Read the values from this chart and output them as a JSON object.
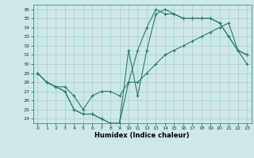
{
  "xlabel": "Humidex (Indice chaleur)",
  "bg_color": "#cce8e8",
  "line_color": "#2e7d6e",
  "grid_color": "#aacccc",
  "xlim": [
    -0.5,
    23.5
  ],
  "ylim": [
    23.5,
    36.5
  ],
  "xticks": [
    0,
    1,
    2,
    3,
    4,
    5,
    6,
    7,
    8,
    9,
    10,
    11,
    12,
    13,
    14,
    15,
    16,
    17,
    18,
    19,
    20,
    21,
    22,
    23
  ],
  "yticks": [
    24,
    25,
    26,
    27,
    28,
    29,
    30,
    31,
    32,
    33,
    34,
    35,
    36
  ],
  "line1_x": [
    0,
    1,
    2,
    3,
    4,
    5,
    6,
    7,
    8,
    9,
    10,
    11,
    12,
    13,
    14,
    15,
    16,
    17,
    18,
    19,
    20,
    21,
    22,
    23
  ],
  "line1_y": [
    29,
    28,
    27.5,
    27.5,
    26.5,
    25,
    26.5,
    27,
    27,
    26.5,
    28,
    28,
    29,
    30,
    31,
    31.5,
    32,
    32.5,
    33,
    33.5,
    34,
    34.5,
    31.5,
    30
  ],
  "line2_x": [
    0,
    1,
    2,
    3,
    4,
    5,
    6,
    7,
    8,
    9,
    10,
    11,
    12,
    13,
    14,
    15,
    16,
    17,
    18,
    19,
    20,
    21,
    22,
    23
  ],
  "line2_y": [
    29,
    28,
    27.5,
    27,
    25,
    24.5,
    24.5,
    24,
    23.5,
    23.5,
    28,
    31.5,
    34,
    36,
    35.5,
    35.5,
    35,
    35,
    35,
    35,
    34.5,
    33,
    31.5,
    31
  ],
  "line3_x": [
    0,
    1,
    2,
    3,
    4,
    5,
    6,
    7,
    8,
    9,
    10,
    11,
    12,
    13,
    14,
    15,
    16,
    17,
    18,
    19,
    20,
    21,
    22,
    23
  ],
  "line3_y": [
    29,
    28,
    27.5,
    27,
    25,
    24.5,
    24.5,
    24,
    23.5,
    23.5,
    31.5,
    26.5,
    31.5,
    35.5,
    36,
    35.5,
    35,
    35,
    35,
    35,
    34.5,
    33,
    31.5,
    31
  ]
}
